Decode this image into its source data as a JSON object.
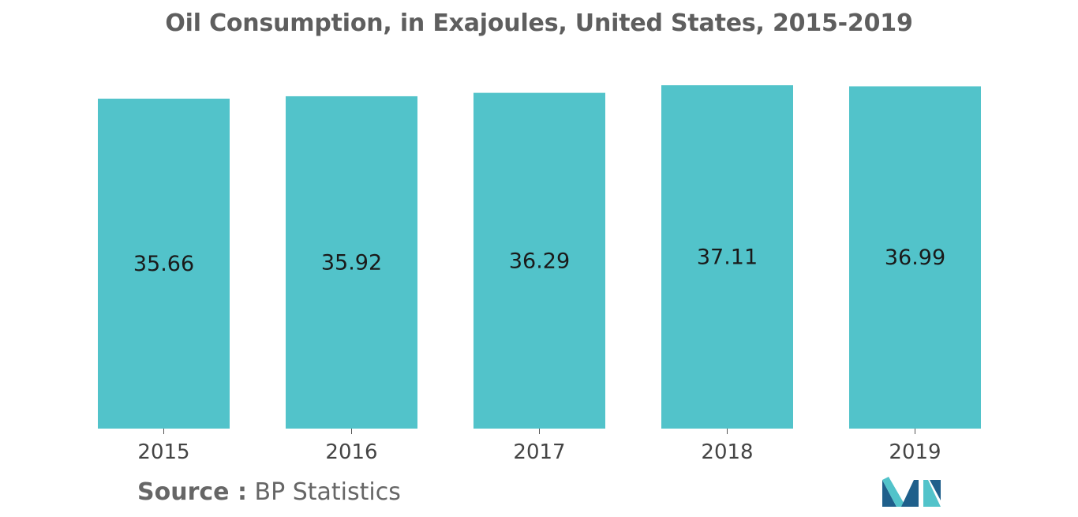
{
  "chart_data": {
    "type": "bar",
    "title": "Oil Consumption, in Exajoules, United States, 2015-2019",
    "categories": [
      "2015",
      "2016",
      "2017",
      "2018",
      "2019"
    ],
    "values": [
      35.66,
      35.92,
      36.29,
      37.11,
      36.99
    ],
    "value_labels": [
      "35.66",
      "35.92",
      "36.29",
      "37.11",
      "36.99"
    ],
    "xlabel": "",
    "ylabel": "",
    "ylim": [
      0,
      37.11
    ],
    "grid": false,
    "legend": "none",
    "bar_color": "#52c3ca"
  },
  "source": {
    "key": "Source :",
    "value": "BP Statistics"
  },
  "logo": {
    "name": "mordor-intelligence-logo",
    "colors": [
      "#1f5f8b",
      "#52c3ca"
    ]
  }
}
